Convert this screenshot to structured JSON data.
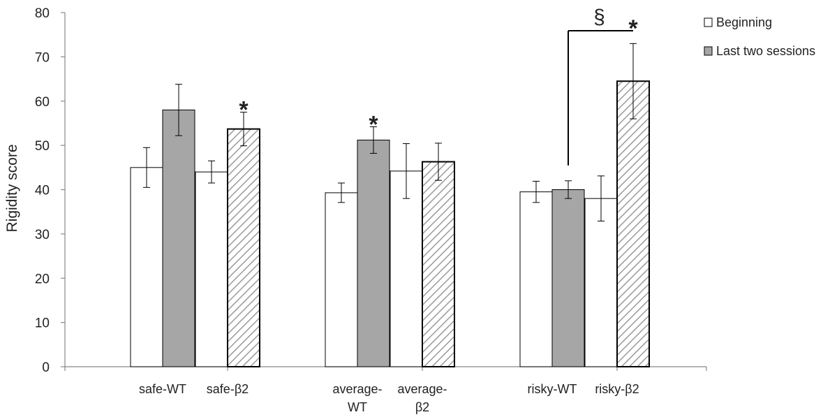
{
  "chart_data": {
    "type": "bar",
    "ylabel": "Rigidity score",
    "ylim": [
      0,
      80
    ],
    "yticks": [
      0,
      10,
      20,
      30,
      40,
      50,
      60,
      70,
      80
    ],
    "legend": {
      "position": "top-right",
      "entries": [
        {
          "label": "Beginning",
          "fill": "white"
        },
        {
          "label": "Last two sessions",
          "fill": "gray"
        }
      ]
    },
    "groups": [
      {
        "name": "safe",
        "subgroups": [
          {
            "label_lines": [
              "safe-WT"
            ],
            "bars": [
              {
                "series": "Beginning",
                "value": 45,
                "err": 4.5,
                "fill": "white"
              },
              {
                "series": "Last two sessions",
                "value": 58,
                "err": 5.8,
                "fill": "gray"
              }
            ]
          },
          {
            "label_lines": [
              "safe-β2"
            ],
            "bars": [
              {
                "series": "Beginning",
                "value": 44,
                "err": 2.5,
                "fill": "white"
              },
              {
                "series": "Last two sessions",
                "value": 53.7,
                "err": 3.8,
                "fill": "hatch"
              }
            ]
          }
        ]
      },
      {
        "name": "average",
        "subgroups": [
          {
            "label_lines": [
              "average-",
              "WT"
            ],
            "bars": [
              {
                "series": "Beginning",
                "value": 39.3,
                "err": 2.2,
                "fill": "white"
              },
              {
                "series": "Last two sessions",
                "value": 51.2,
                "err": 3,
                "fill": "gray"
              }
            ]
          },
          {
            "label_lines": [
              "average-",
              "β2"
            ],
            "bars": [
              {
                "series": "Beginning",
                "value": 44.2,
                "err": 6.2,
                "fill": "white"
              },
              {
                "series": "Last two sessions",
                "value": 46.3,
                "err": 4.2,
                "fill": "hatch"
              }
            ]
          }
        ]
      },
      {
        "name": "risky",
        "subgroups": [
          {
            "label_lines": [
              "risky-WT"
            ],
            "bars": [
              {
                "series": "Beginning",
                "value": 39.5,
                "err": 2.4,
                "fill": "white"
              },
              {
                "series": "Last two sessions",
                "value": 40,
                "err": 2,
                "fill": "gray"
              }
            ]
          },
          {
            "label_lines": [
              "risky-β2"
            ],
            "bars": [
              {
                "series": "Beginning",
                "value": 38,
                "err": 5.1,
                "fill": "white"
              },
              {
                "series": "Last two sessions",
                "value": 64.5,
                "err": 8.5,
                "fill": "hatch"
              }
            ]
          }
        ]
      }
    ],
    "annotations": [
      {
        "text": "*",
        "group": 0,
        "subgroup": 1,
        "bar": 1
      },
      {
        "text": "*",
        "group": 1,
        "subgroup": 0,
        "bar": 1
      },
      {
        "text": "*",
        "group": 2,
        "subgroup": 1,
        "bar": 1
      },
      {
        "text": "§",
        "type": "bracket",
        "from": {
          "group": 2,
          "subgroup": 0,
          "bar": 1
        },
        "to": {
          "group": 2,
          "subgroup": 1,
          "bar": 1
        }
      }
    ]
  }
}
